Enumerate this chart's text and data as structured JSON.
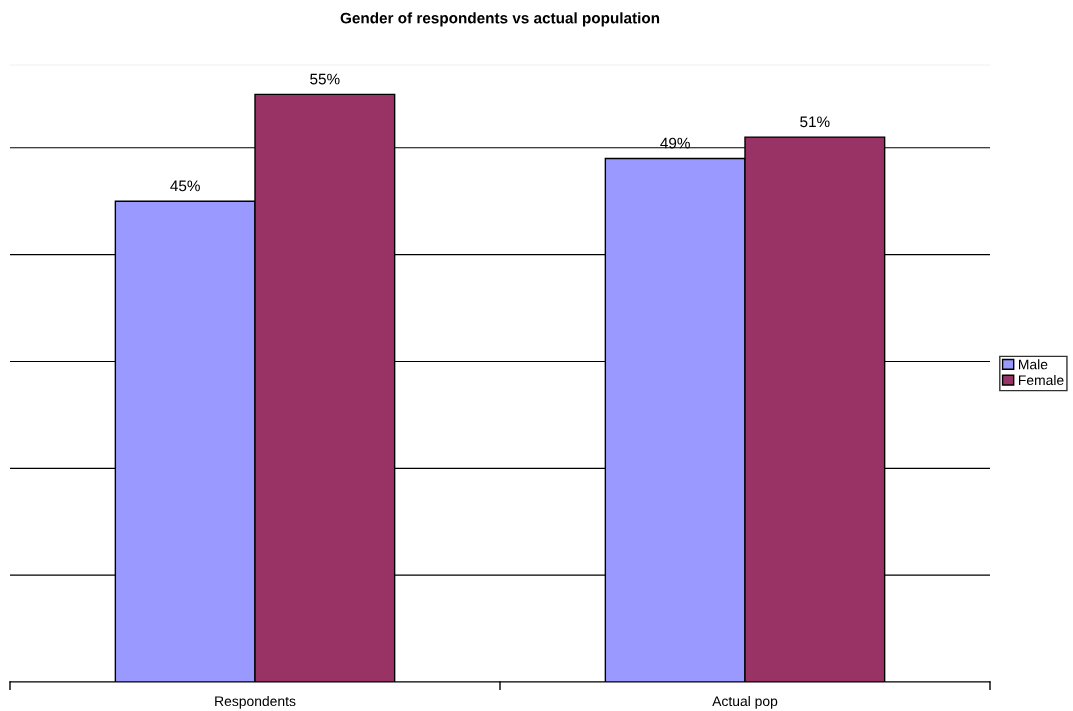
{
  "chart_data": {
    "type": "bar",
    "title": "Gender of respondents vs actual population",
    "categories": [
      "Respondents",
      "Actual pop"
    ],
    "series": [
      {
        "name": "Male",
        "color": "#9999ff",
        "values": [
          45,
          49
        ],
        "value_labels": [
          "45%",
          "49%"
        ]
      },
      {
        "name": "Female",
        "color": "#993366",
        "values": [
          55,
          51
        ],
        "value_labels": [
          "55%",
          "51%"
        ]
      }
    ],
    "tick_labels": "x",
    "grid": "y",
    "legend": "right"
  }
}
